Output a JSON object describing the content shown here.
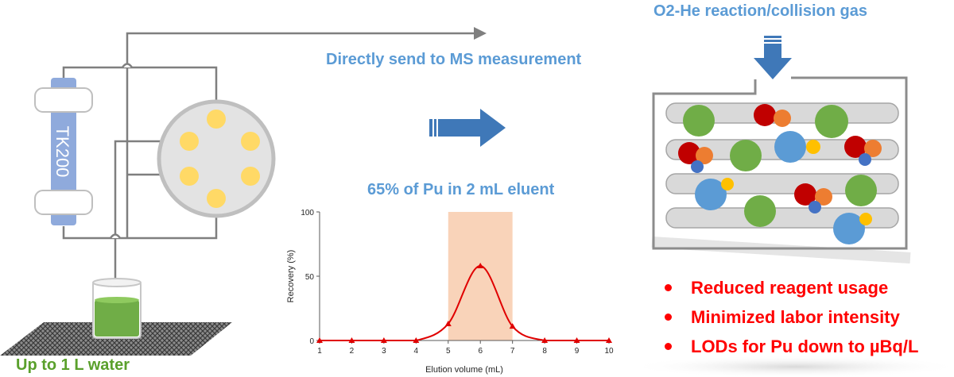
{
  "labels": {
    "column_name": "TK200",
    "direct_send": "Directly send to MS measurement",
    "gas": "O2-He reaction/collision gas",
    "water": "Up to 1 L water",
    "elution_caption": "65% of Pu in 2 mL eluent"
  },
  "benefits": [
    "Reduced reagent usage",
    "Minimized labor intensity",
    "LODs for Pu down to µBq/L"
  ],
  "colors": {
    "accent_blue": "#5b9bd5",
    "arrow_blue": "#3f78b8",
    "column_blue": "#8faadc",
    "port_yellow": "#ffd966",
    "highlight_band": "#f8cbad",
    "curve_red": "#e00000",
    "benefit_red": "#ff0000",
    "water_green": "#5aa02c",
    "ion_green": "#70ad47",
    "ion_red": "#c00000",
    "ion_orange": "#ed7d31",
    "ion_blue": "#5b9bd5",
    "ion_navy": "#4472c4",
    "ion_yellow": "#ffc000"
  },
  "chart_data": {
    "type": "line",
    "title": "",
    "xlabel": "Elution volume (mL)",
    "ylabel": "Recovery (%)",
    "xlim": [
      1,
      10
    ],
    "ylim": [
      0,
      100
    ],
    "x_ticks": [
      1,
      2,
      3,
      4,
      5,
      6,
      7,
      8,
      9,
      10
    ],
    "y_ticks": [
      0,
      50,
      100
    ],
    "highlight_range": [
      5,
      7
    ],
    "series": [
      {
        "x": [
          1,
          2,
          3,
          4,
          5,
          6,
          7,
          8,
          9,
          10
        ],
        "values": [
          0,
          0,
          0,
          0,
          13,
          58,
          11,
          0,
          0,
          0
        ]
      }
    ]
  }
}
